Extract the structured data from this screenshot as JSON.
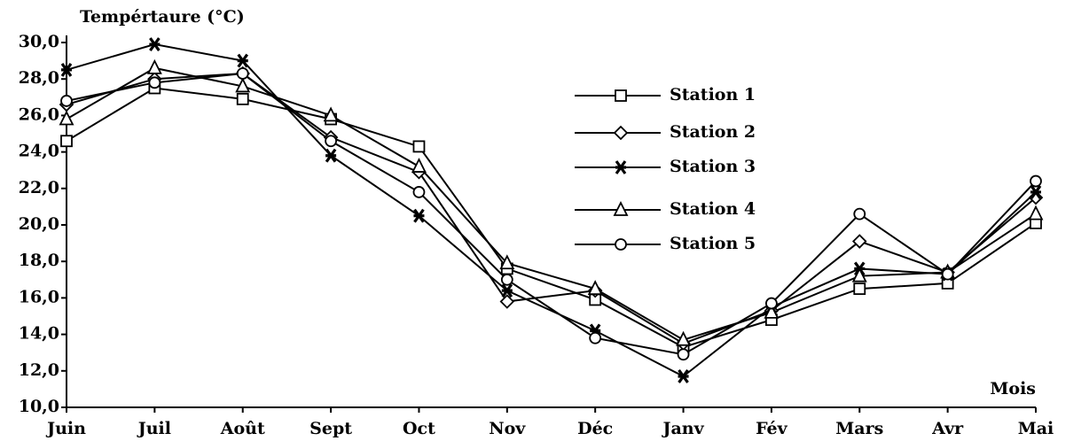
{
  "chart_data": {
    "type": "line",
    "y_label": "Tempértaure (°C)",
    "x_label": "Mois",
    "categories": [
      "Juin",
      "Juil",
      "Août",
      "Sept",
      "Oct",
      "Nov",
      "Déc",
      "Janv",
      "Fév",
      "Mars",
      "Avr",
      "Mai"
    ],
    "series": [
      {
        "name": "Station 1",
        "color": "#000000",
        "marker": "square",
        "values": [
          24.6,
          27.5,
          26.9,
          25.8,
          24.3,
          17.6,
          15.9,
          13.3,
          14.8,
          16.5,
          16.8,
          20.1
        ]
      },
      {
        "name": "Station 2",
        "color": "#000000",
        "marker": "diamond",
        "values": [
          26.6,
          28.0,
          28.3,
          24.8,
          22.9,
          15.8,
          16.4,
          13.5,
          15.3,
          19.1,
          17.4,
          21.5
        ]
      },
      {
        "name": "Station 3",
        "color": "#000000",
        "marker": "x",
        "values": [
          28.5,
          29.9,
          29.0,
          23.8,
          20.5,
          16.4,
          14.2,
          11.7,
          15.5,
          17.6,
          17.3,
          21.8
        ]
      },
      {
        "name": "Station 4",
        "color": "#000000",
        "marker": "triangle",
        "values": [
          25.8,
          28.6,
          27.6,
          26.0,
          23.2,
          17.9,
          16.5,
          13.7,
          15.2,
          17.2,
          17.4,
          20.6
        ]
      },
      {
        "name": "Station 5",
        "color": "#000000",
        "marker": "circle",
        "values": [
          26.8,
          27.8,
          28.3,
          24.6,
          21.8,
          17.0,
          13.8,
          12.9,
          15.7,
          20.6,
          17.3,
          22.4
        ]
      }
    ],
    "ylim": [
      10,
      30
    ],
    "yticks": [
      {
        "value": 10,
        "label": "10,0"
      },
      {
        "value": 12,
        "label": "12,0"
      },
      {
        "value": 14,
        "label": "14,0"
      },
      {
        "value": 16,
        "label": "16,0"
      },
      {
        "value": 18,
        "label": "18,0"
      },
      {
        "value": 20,
        "label": "20,0"
      },
      {
        "value": 22,
        "label": "22,0"
      },
      {
        "value": 24,
        "label": "24,0"
      },
      {
        "value": 26,
        "label": "26,0"
      },
      {
        "value": 28,
        "label": "28,0"
      },
      {
        "value": 30,
        "label": "30,0"
      }
    ],
    "grid": false,
    "legend": "right"
  }
}
